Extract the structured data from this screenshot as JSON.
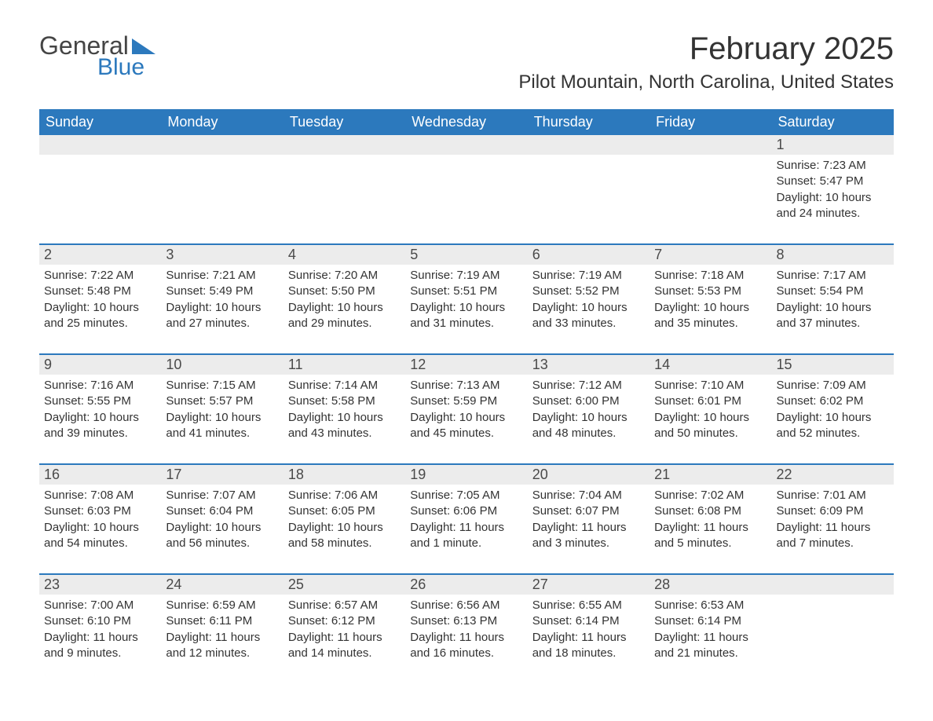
{
  "logo": {
    "word1": "General",
    "word2": "Blue"
  },
  "title": "February 2025",
  "location": "Pilot Mountain, North Carolina, United States",
  "colors": {
    "header_bg": "#2c79bd",
    "header_text": "#ffffff",
    "daynum_bg": "#ececec",
    "text": "#333333",
    "row_border": "#2c79bd"
  },
  "day_headers": [
    "Sunday",
    "Monday",
    "Tuesday",
    "Wednesday",
    "Thursday",
    "Friday",
    "Saturday"
  ],
  "weeks": [
    [
      null,
      null,
      null,
      null,
      null,
      null,
      {
        "n": "1",
        "sunrise": "Sunrise: 7:23 AM",
        "sunset": "Sunset: 5:47 PM",
        "daylight": "Daylight: 10 hours and 24 minutes."
      }
    ],
    [
      {
        "n": "2",
        "sunrise": "Sunrise: 7:22 AM",
        "sunset": "Sunset: 5:48 PM",
        "daylight": "Daylight: 10 hours and 25 minutes."
      },
      {
        "n": "3",
        "sunrise": "Sunrise: 7:21 AM",
        "sunset": "Sunset: 5:49 PM",
        "daylight": "Daylight: 10 hours and 27 minutes."
      },
      {
        "n": "4",
        "sunrise": "Sunrise: 7:20 AM",
        "sunset": "Sunset: 5:50 PM",
        "daylight": "Daylight: 10 hours and 29 minutes."
      },
      {
        "n": "5",
        "sunrise": "Sunrise: 7:19 AM",
        "sunset": "Sunset: 5:51 PM",
        "daylight": "Daylight: 10 hours and 31 minutes."
      },
      {
        "n": "6",
        "sunrise": "Sunrise: 7:19 AM",
        "sunset": "Sunset: 5:52 PM",
        "daylight": "Daylight: 10 hours and 33 minutes."
      },
      {
        "n": "7",
        "sunrise": "Sunrise: 7:18 AM",
        "sunset": "Sunset: 5:53 PM",
        "daylight": "Daylight: 10 hours and 35 minutes."
      },
      {
        "n": "8",
        "sunrise": "Sunrise: 7:17 AM",
        "sunset": "Sunset: 5:54 PM",
        "daylight": "Daylight: 10 hours and 37 minutes."
      }
    ],
    [
      {
        "n": "9",
        "sunrise": "Sunrise: 7:16 AM",
        "sunset": "Sunset: 5:55 PM",
        "daylight": "Daylight: 10 hours and 39 minutes."
      },
      {
        "n": "10",
        "sunrise": "Sunrise: 7:15 AM",
        "sunset": "Sunset: 5:57 PM",
        "daylight": "Daylight: 10 hours and 41 minutes."
      },
      {
        "n": "11",
        "sunrise": "Sunrise: 7:14 AM",
        "sunset": "Sunset: 5:58 PM",
        "daylight": "Daylight: 10 hours and 43 minutes."
      },
      {
        "n": "12",
        "sunrise": "Sunrise: 7:13 AM",
        "sunset": "Sunset: 5:59 PM",
        "daylight": "Daylight: 10 hours and 45 minutes."
      },
      {
        "n": "13",
        "sunrise": "Sunrise: 7:12 AM",
        "sunset": "Sunset: 6:00 PM",
        "daylight": "Daylight: 10 hours and 48 minutes."
      },
      {
        "n": "14",
        "sunrise": "Sunrise: 7:10 AM",
        "sunset": "Sunset: 6:01 PM",
        "daylight": "Daylight: 10 hours and 50 minutes."
      },
      {
        "n": "15",
        "sunrise": "Sunrise: 7:09 AM",
        "sunset": "Sunset: 6:02 PM",
        "daylight": "Daylight: 10 hours and 52 minutes."
      }
    ],
    [
      {
        "n": "16",
        "sunrise": "Sunrise: 7:08 AM",
        "sunset": "Sunset: 6:03 PM",
        "daylight": "Daylight: 10 hours and 54 minutes."
      },
      {
        "n": "17",
        "sunrise": "Sunrise: 7:07 AM",
        "sunset": "Sunset: 6:04 PM",
        "daylight": "Daylight: 10 hours and 56 minutes."
      },
      {
        "n": "18",
        "sunrise": "Sunrise: 7:06 AM",
        "sunset": "Sunset: 6:05 PM",
        "daylight": "Daylight: 10 hours and 58 minutes."
      },
      {
        "n": "19",
        "sunrise": "Sunrise: 7:05 AM",
        "sunset": "Sunset: 6:06 PM",
        "daylight": "Daylight: 11 hours and 1 minute."
      },
      {
        "n": "20",
        "sunrise": "Sunrise: 7:04 AM",
        "sunset": "Sunset: 6:07 PM",
        "daylight": "Daylight: 11 hours and 3 minutes."
      },
      {
        "n": "21",
        "sunrise": "Sunrise: 7:02 AM",
        "sunset": "Sunset: 6:08 PM",
        "daylight": "Daylight: 11 hours and 5 minutes."
      },
      {
        "n": "22",
        "sunrise": "Sunrise: 7:01 AM",
        "sunset": "Sunset: 6:09 PM",
        "daylight": "Daylight: 11 hours and 7 minutes."
      }
    ],
    [
      {
        "n": "23",
        "sunrise": "Sunrise: 7:00 AM",
        "sunset": "Sunset: 6:10 PM",
        "daylight": "Daylight: 11 hours and 9 minutes."
      },
      {
        "n": "24",
        "sunrise": "Sunrise: 6:59 AM",
        "sunset": "Sunset: 6:11 PM",
        "daylight": "Daylight: 11 hours and 12 minutes."
      },
      {
        "n": "25",
        "sunrise": "Sunrise: 6:57 AM",
        "sunset": "Sunset: 6:12 PM",
        "daylight": "Daylight: 11 hours and 14 minutes."
      },
      {
        "n": "26",
        "sunrise": "Sunrise: 6:56 AM",
        "sunset": "Sunset: 6:13 PM",
        "daylight": "Daylight: 11 hours and 16 minutes."
      },
      {
        "n": "27",
        "sunrise": "Sunrise: 6:55 AM",
        "sunset": "Sunset: 6:14 PM",
        "daylight": "Daylight: 11 hours and 18 minutes."
      },
      {
        "n": "28",
        "sunrise": "Sunrise: 6:53 AM",
        "sunset": "Sunset: 6:14 PM",
        "daylight": "Daylight: 11 hours and 21 minutes."
      },
      null
    ]
  ]
}
